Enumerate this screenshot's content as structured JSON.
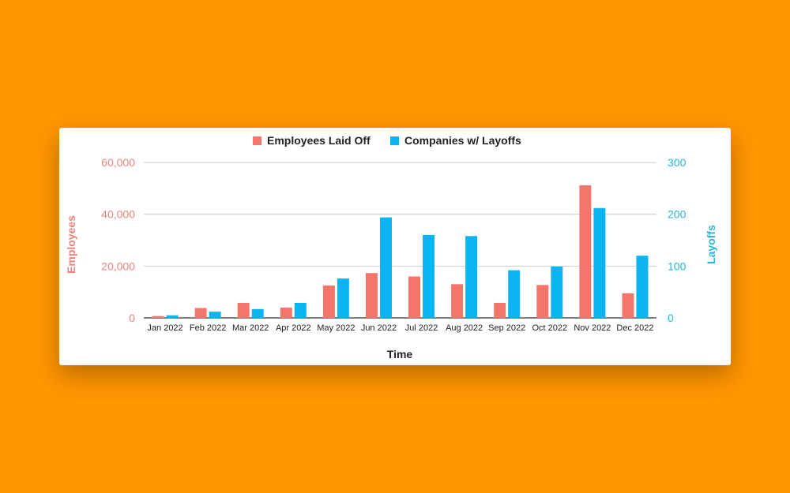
{
  "chart_data": {
    "type": "bar",
    "xlabel": "Time",
    "categories": [
      "Jan 2022",
      "Feb 2022",
      "Mar 2022",
      "Apr 2022",
      "May 2022",
      "Jun 2022",
      "Jul 2022",
      "Aug 2022",
      "Sep 2022",
      "Oct 2022",
      "Nov 2022",
      "Dec 2022"
    ],
    "series": [
      {
        "name": "Employees Laid Off",
        "axis": "left",
        "color": "#F4766B",
        "values": [
          700,
          3800,
          5800,
          4000,
          12500,
          17300,
          16000,
          13000,
          5800,
          12700,
          51200,
          9500
        ]
      },
      {
        "name": "Companies w/ Layoffs",
        "axis": "right",
        "color": "#0AB4F2",
        "values": [
          5,
          12,
          17,
          29,
          76,
          194,
          160,
          158,
          92,
          99,
          212,
          120
        ]
      }
    ],
    "y_left": {
      "label": "Employees",
      "range": [
        0,
        60000
      ],
      "ticks": [
        "0",
        "20,000",
        "40,000",
        "60,000"
      ],
      "color": "#E8857C"
    },
    "y_right": {
      "label": "Layoffs",
      "range": [
        0,
        300
      ],
      "ticks": [
        "0",
        "100",
        "200",
        "300"
      ],
      "color": "#29B5D8"
    },
    "grid": true,
    "legend": "top-center"
  }
}
